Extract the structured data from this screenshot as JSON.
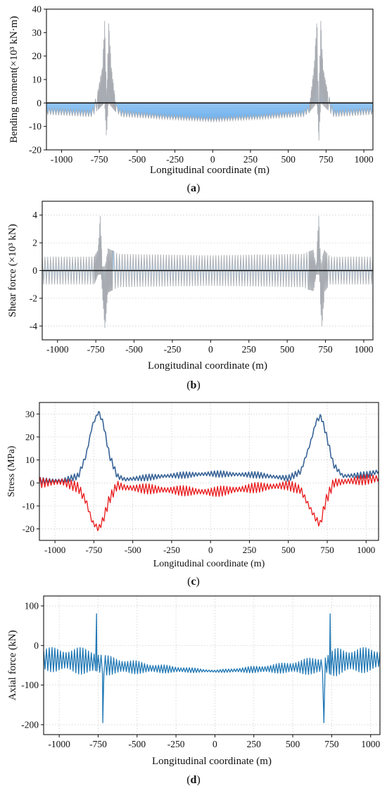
{
  "chart_data": [
    {
      "type": "area",
      "caption": "(a)",
      "ylabel": "Bending moment(×10³ kN·m)",
      "xlabel": "Longitudinal coordinate (m)",
      "xlim": [
        -1100,
        1060
      ],
      "ylim": [
        -20,
        40
      ],
      "xticks": [
        -1000,
        -750,
        -500,
        -250,
        0,
        250,
        500,
        750,
        1000
      ],
      "yticks": [
        -20,
        -10,
        0,
        10,
        20,
        30,
        40
      ],
      "zero_line": true,
      "grid": false,
      "colors": {
        "fill": "#2f8ee6",
        "line": "#a8acb2"
      },
      "oscillation": {
        "period": 18,
        "spike_positions": [
          -700,
          700
        ]
      },
      "envelope_upper": [
        [
          -1100,
          -2
        ],
        [
          -800,
          -3
        ],
        [
          -760,
          5
        ],
        [
          -730,
          15
        ],
        [
          -715,
          35
        ],
        [
          -700,
          -1
        ],
        [
          -690,
          36
        ],
        [
          -670,
          15
        ],
        [
          -640,
          -1
        ],
        [
          -600,
          -3
        ],
        [
          -300,
          -5
        ],
        [
          0,
          -6
        ],
        [
          300,
          -5
        ],
        [
          600,
          -3
        ],
        [
          640,
          -1
        ],
        [
          670,
          15
        ],
        [
          690,
          36
        ],
        [
          700,
          -2
        ],
        [
          715,
          35
        ],
        [
          730,
          15
        ],
        [
          760,
          5
        ],
        [
          800,
          -3
        ],
        [
          1060,
          -2
        ]
      ],
      "envelope_lower": [
        [
          -1100,
          -5
        ],
        [
          -800,
          -6
        ],
        [
          -760,
          -3
        ],
        [
          -730,
          -1
        ],
        [
          -715,
          0
        ],
        [
          -703,
          -15
        ],
        [
          -690,
          0
        ],
        [
          -640,
          -4
        ],
        [
          -600,
          -6
        ],
        [
          -300,
          -7
        ],
        [
          0,
          -8
        ],
        [
          300,
          -7
        ],
        [
          600,
          -6
        ],
        [
          640,
          -4
        ],
        [
          690,
          0
        ],
        [
          703,
          -16
        ],
        [
          715,
          0
        ],
        [
          760,
          -3
        ],
        [
          800,
          -6
        ],
        [
          1060,
          -5
        ]
      ]
    },
    {
      "type": "area",
      "caption": "(b)",
      "ylabel": "Shear force (×10³ kN)",
      "xlabel": "Longitudinal coordinate (m)",
      "xlim": [
        -1100,
        1060
      ],
      "ylim": [
        -5,
        5
      ],
      "xticks": [
        -1000,
        -750,
        -500,
        -250,
        0,
        250,
        500,
        750,
        1000
      ],
      "yticks": [
        -4,
        -2,
        0,
        2,
        4
      ],
      "zero_line": true,
      "grid": "horizontal-dotted",
      "colors": {
        "fill": "#2f8ee6",
        "line": "#a8acb2"
      },
      "oscillation": {
        "period": 18,
        "spike_positions": [
          -700,
          700
        ]
      },
      "envelope_upper": [
        [
          -1100,
          1
        ],
        [
          -760,
          1
        ],
        [
          -735,
          1.5
        ],
        [
          -720,
          4.1
        ],
        [
          -708,
          0.3
        ],
        [
          -690,
          0.3
        ],
        [
          -670,
          1.6
        ],
        [
          -600,
          1.2
        ],
        [
          0,
          1.1
        ],
        [
          600,
          1.2
        ],
        [
          670,
          1.5
        ],
        [
          690,
          0.3
        ],
        [
          705,
          4.2
        ],
        [
          720,
          0.3
        ],
        [
          740,
          1.5
        ],
        [
          780,
          1
        ],
        [
          1060,
          1
        ]
      ],
      "envelope_lower": [
        [
          -1100,
          -1
        ],
        [
          -760,
          -1
        ],
        [
          -735,
          -0.3
        ],
        [
          -715,
          -0.3
        ],
        [
          -705,
          -2
        ],
        [
          -690,
          -4.3
        ],
        [
          -672,
          -1.6
        ],
        [
          -600,
          -1.2
        ],
        [
          0,
          -1.1
        ],
        [
          600,
          -1.2
        ],
        [
          672,
          -1.5
        ],
        [
          690,
          -0.3
        ],
        [
          710,
          -0.3
        ],
        [
          725,
          -4.3
        ],
        [
          745,
          -1.5
        ],
        [
          780,
          -1
        ],
        [
          1060,
          -1
        ]
      ]
    },
    {
      "type": "line",
      "caption": "(c)",
      "ylabel": "Stress (MPa)",
      "xlabel": "Longitudinal coordinate (m)",
      "xlim": [
        -1100,
        1080
      ],
      "ylim": [
        -25,
        35
      ],
      "xticks": [
        -1000,
        -750,
        -500,
        -250,
        0,
        250,
        500,
        750,
        1000
      ],
      "yticks": [
        -20,
        -10,
        0,
        10,
        20,
        30
      ],
      "grid": "dotted",
      "series": [
        {
          "color": "#3a6598",
          "amplitude": 1.0,
          "period": 20,
          "points": [
            [
              -1100,
              1
            ],
            [
              -950,
              1
            ],
            [
              -850,
              3
            ],
            [
              -800,
              12
            ],
            [
              -760,
              25
            ],
            [
              -720,
              31
            ],
            [
              -690,
              26
            ],
            [
              -650,
              12
            ],
            [
              -600,
              3
            ],
            [
              -550,
              1.5
            ],
            [
              -300,
              3
            ],
            [
              0,
              4
            ],
            [
              300,
              3.5
            ],
            [
              500,
              2
            ],
            [
              580,
              5
            ],
            [
              640,
              17
            ],
            [
              680,
              27
            ],
            [
              710,
              29
            ],
            [
              740,
              22
            ],
            [
              790,
              8
            ],
            [
              850,
              3
            ],
            [
              1000,
              3.5
            ],
            [
              1080,
              5
            ]
          ]
        },
        {
          "color": "#e8191b",
          "amplitude": 1.6,
          "period": 20,
          "points": [
            [
              -1100,
              0
            ],
            [
              -950,
              0.5
            ],
            [
              -850,
              -2
            ],
            [
              -800,
              -8
            ],
            [
              -760,
              -17
            ],
            [
              -720,
              -20
            ],
            [
              -690,
              -16
            ],
            [
              -650,
              -7
            ],
            [
              -600,
              -1
            ],
            [
              -550,
              -2
            ],
            [
              -300,
              -3
            ],
            [
              0,
              -4
            ],
            [
              300,
              -2
            ],
            [
              500,
              -1
            ],
            [
              580,
              -3
            ],
            [
              640,
              -11
            ],
            [
              680,
              -16
            ],
            [
              705,
              -18
            ],
            [
              740,
              -8
            ],
            [
              790,
              0
            ],
            [
              850,
              0.5
            ],
            [
              1000,
              1.5
            ],
            [
              1080,
              2
            ]
          ]
        }
      ]
    },
    {
      "type": "line",
      "caption": "(d)",
      "ylabel": "Axial force (kN)",
      "xlabel": "Longitudinal coordinate (m)",
      "xlim": [
        -1100,
        1060
      ],
      "ylim": [
        -225,
        125
      ],
      "xticks": [
        -1000,
        -750,
        -500,
        -250,
        0,
        250,
        500,
        750,
        1000
      ],
      "yticks": [
        -200,
        -100,
        0,
        100
      ],
      "grid": "dotted",
      "series": [
        {
          "color": "#1f77b4",
          "period": 18,
          "mean": [
            [
              -1100,
              -35
            ],
            [
              -800,
              -40
            ],
            [
              -700,
              -50
            ],
            [
              -400,
              -58
            ],
            [
              0,
              -65
            ],
            [
              400,
              -58
            ],
            [
              700,
              -50
            ],
            [
              800,
              -40
            ],
            [
              1060,
              -35
            ]
          ],
          "amp": [
            [
              -1100,
              30
            ],
            [
              -780,
              35
            ],
            [
              -700,
              25
            ],
            [
              -400,
              12
            ],
            [
              0,
              3
            ],
            [
              400,
              12
            ],
            [
              700,
              25
            ],
            [
              780,
              35
            ],
            [
              1060,
              30
            ]
          ],
          "spikes": [
            [
              -760,
              80
            ],
            [
              -720,
              -195
            ],
            [
              700,
              -195
            ],
            [
              740,
              80
            ]
          ]
        }
      ]
    }
  ]
}
